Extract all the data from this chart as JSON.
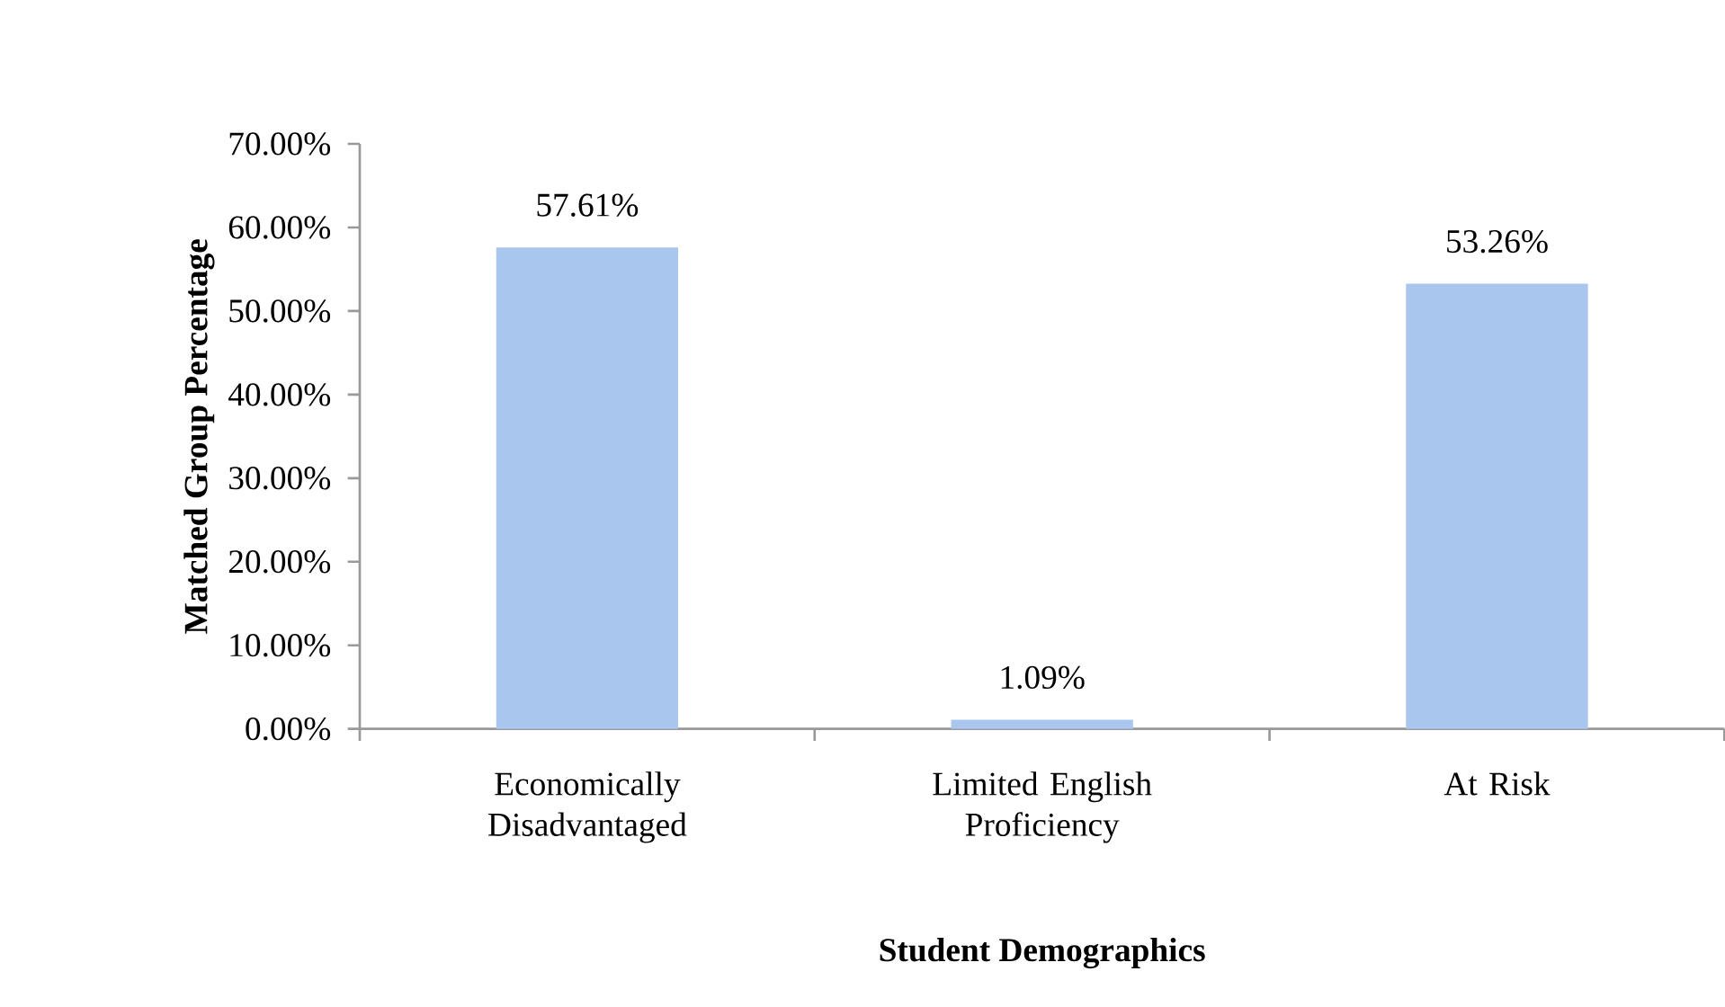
{
  "chart_data": {
    "type": "bar",
    "xlabel": "Student Demographics",
    "ylabel": "Matched Group Percentage",
    "categories": [
      "Economically Disadvantaged",
      "Limited English Proficiency",
      "At Risk"
    ],
    "values": [
      57.61,
      1.09,
      53.26
    ],
    "value_labels": [
      "57.61%",
      "1.09%",
      "53.26%"
    ],
    "color": "#a9c6ee",
    "ylim": [
      0,
      70
    ],
    "yticks": [
      {
        "value": 0,
        "label": "0.00%"
      },
      {
        "value": 10,
        "label": "10.00%"
      },
      {
        "value": 20,
        "label": "20.00%"
      },
      {
        "value": 30,
        "label": "30.00%"
      },
      {
        "value": 40,
        "label": "40.00%"
      },
      {
        "value": 50,
        "label": "50.00%"
      },
      {
        "value": 60,
        "label": "60.00%"
      },
      {
        "value": 70,
        "label": "70.00%"
      }
    ],
    "grid": false
  }
}
